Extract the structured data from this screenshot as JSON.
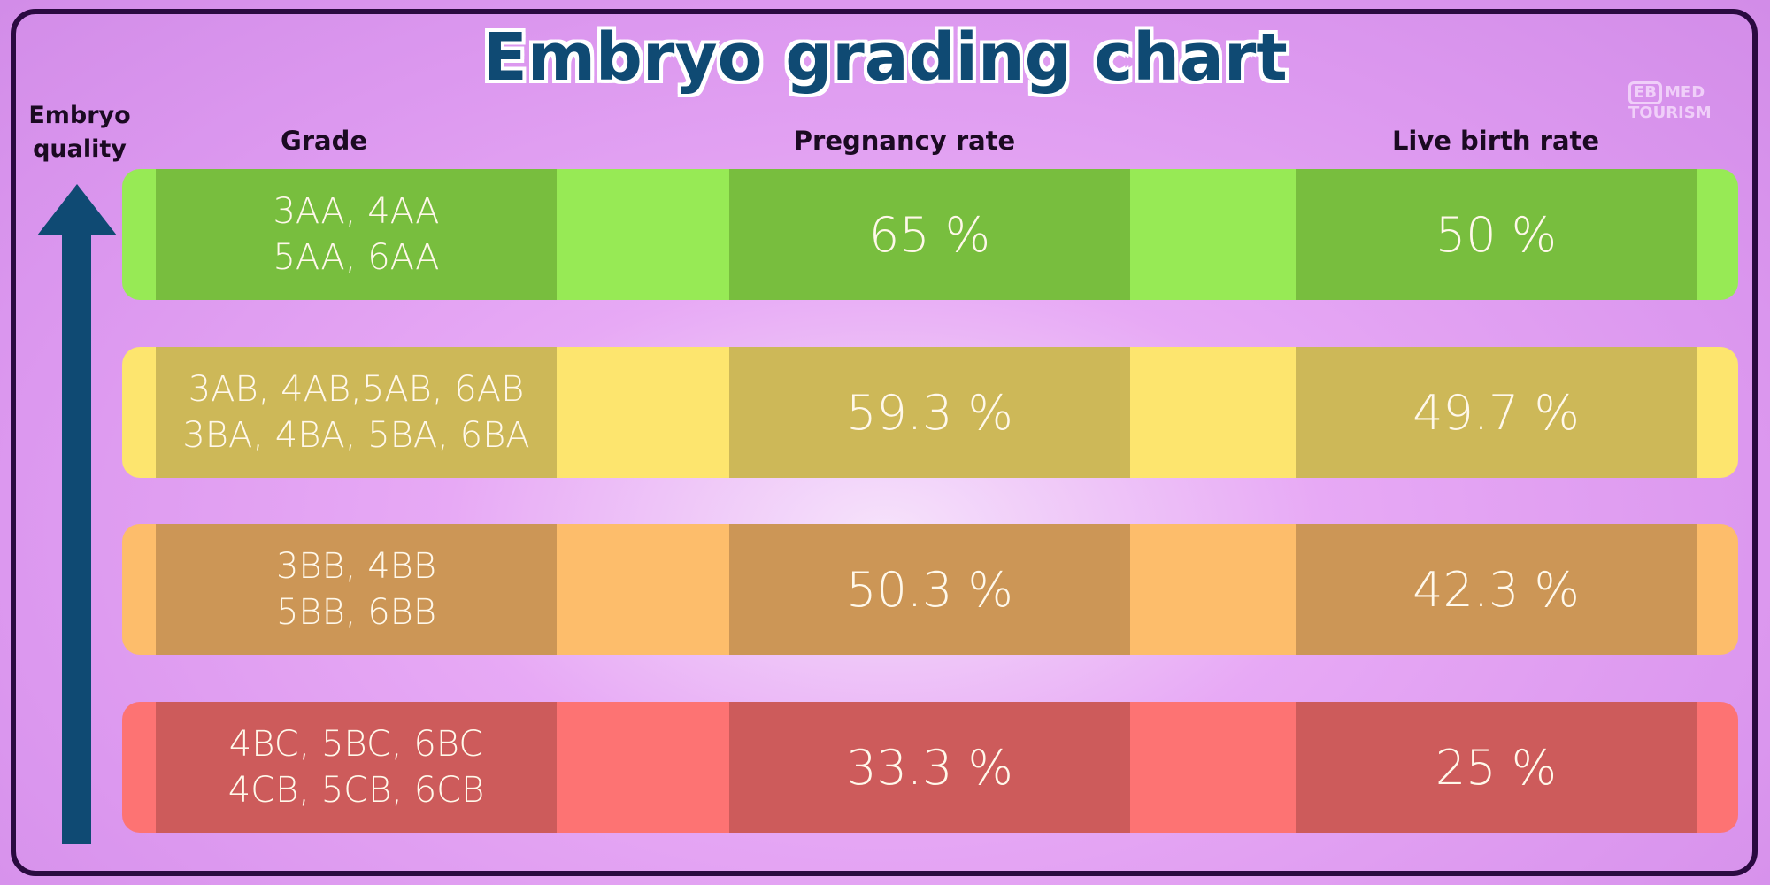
{
  "title": "Embryo grading chart",
  "logo": {
    "text_box": "EB",
    "text_med": "MED",
    "text_tourism": "TOURISM"
  },
  "axis_label": [
    "Embryo",
    "quality"
  ],
  "headers": {
    "grade": "Grade",
    "pregnancy": "Pregnancy rate",
    "live_birth": "Live birth rate"
  },
  "rows": [
    {
      "grade": [
        "3AA, 4AA",
        "5AA, 6AA"
      ],
      "pregnancy": "65 %",
      "live_birth": "50 %",
      "light": "#97ea55",
      "dark": "#78be3e"
    },
    {
      "grade": [
        "3AB, 4AB,5AB, 6AB",
        "3BA, 4BA, 5BA, 6BA"
      ],
      "pregnancy": "59.3 %",
      "live_birth": "49.7 %",
      "light": "#fde56e",
      "dark": "#cdb858"
    },
    {
      "grade": [
        "3BB, 4BB",
        "5BB, 6BB"
      ],
      "pregnancy": "50.3 %",
      "live_birth": "42.3 %",
      "light": "#fdbd6b",
      "dark": "#cc9656"
    },
    {
      "grade": [
        "4BC, 5BC, 6BC",
        "4CB, 5CB, 6CB"
      ],
      "pregnancy": "33.3 %",
      "live_birth": "25 %",
      "light": "#fd7373",
      "dark": "#cd5b5b"
    }
  ]
}
